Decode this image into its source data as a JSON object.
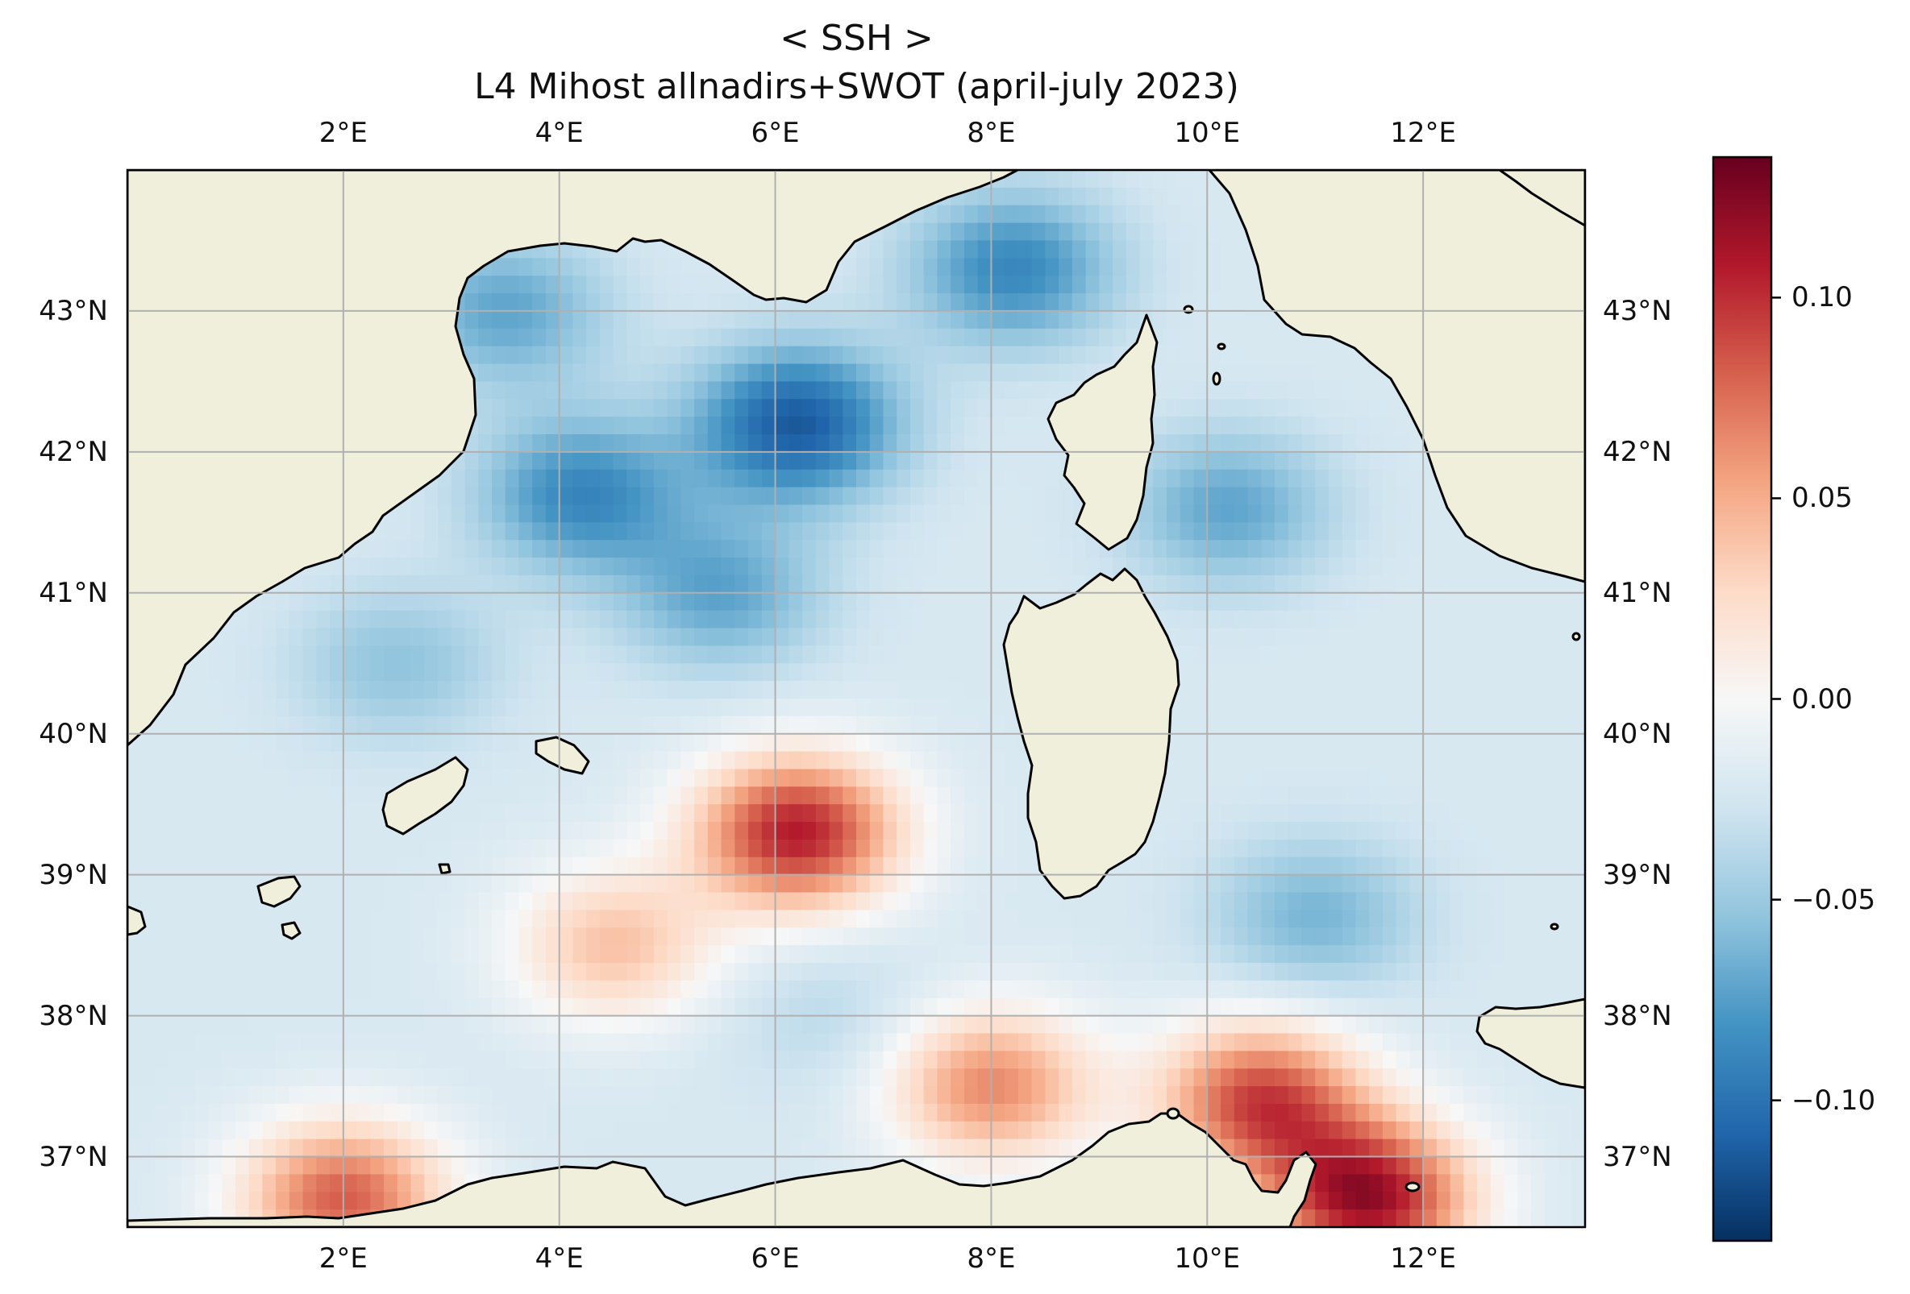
{
  "chart_data": {
    "type": "heatmap",
    "title": "< SSH >",
    "subtitle": "L4 Mihost allnadirs+SWOT (april-july 2023)",
    "projection": "PlateCarree",
    "lon_range": [
      0.0,
      13.5
    ],
    "lat_range": [
      36.5,
      44.0
    ],
    "gridlines": true,
    "lon_ticks": [
      "2°E",
      "4°E",
      "6°E",
      "8°E",
      "10°E",
      "12°E"
    ],
    "lon_tick_values": [
      2,
      4,
      6,
      8,
      10,
      12
    ],
    "lat_ticks": [
      "37°N",
      "38°N",
      "39°N",
      "40°N",
      "41°N",
      "42°N",
      "43°N"
    ],
    "lat_tick_values": [
      37,
      38,
      39,
      40,
      41,
      42,
      43
    ],
    "colormap": "RdBu_r",
    "colorbar": {
      "range": [
        -0.135,
        0.135
      ],
      "ticks": [
        "0.10",
        "0.05",
        "0.00",
        "−0.05",
        "−0.10"
      ],
      "tick_values": [
        0.1,
        0.05,
        0.0,
        -0.05,
        -0.1
      ],
      "placement": "right"
    },
    "land_color": "#efefdc",
    "features": [
      {
        "lon": 6.2,
        "lat": 42.2,
        "value": -0.13
      },
      {
        "lon": 4.2,
        "lat": 41.7,
        "value": -0.1
      },
      {
        "lon": 8.2,
        "lat": 43.3,
        "value": -0.1
      },
      {
        "lon": 3.5,
        "lat": 43.0,
        "value": -0.08
      },
      {
        "lon": 5.5,
        "lat": 41.0,
        "value": -0.08
      },
      {
        "lon": 2.5,
        "lat": 40.5,
        "value": -0.06
      },
      {
        "lon": 10.2,
        "lat": 41.6,
        "value": -0.08
      },
      {
        "lon": 11.0,
        "lat": 38.7,
        "value": -0.07
      },
      {
        "lon": 6.5,
        "lat": 38.0,
        "value": -0.04
      },
      {
        "lon": 6.2,
        "lat": 39.3,
        "value": 0.13
      },
      {
        "lon": 4.5,
        "lat": 38.5,
        "value": 0.05
      },
      {
        "lon": 8.0,
        "lat": 37.5,
        "value": 0.08
      },
      {
        "lon": 10.5,
        "lat": 37.4,
        "value": 0.11
      },
      {
        "lon": 11.5,
        "lat": 36.7,
        "value": 0.14
      },
      {
        "lon": 2.0,
        "lat": 36.7,
        "value": 0.1
      }
    ]
  }
}
